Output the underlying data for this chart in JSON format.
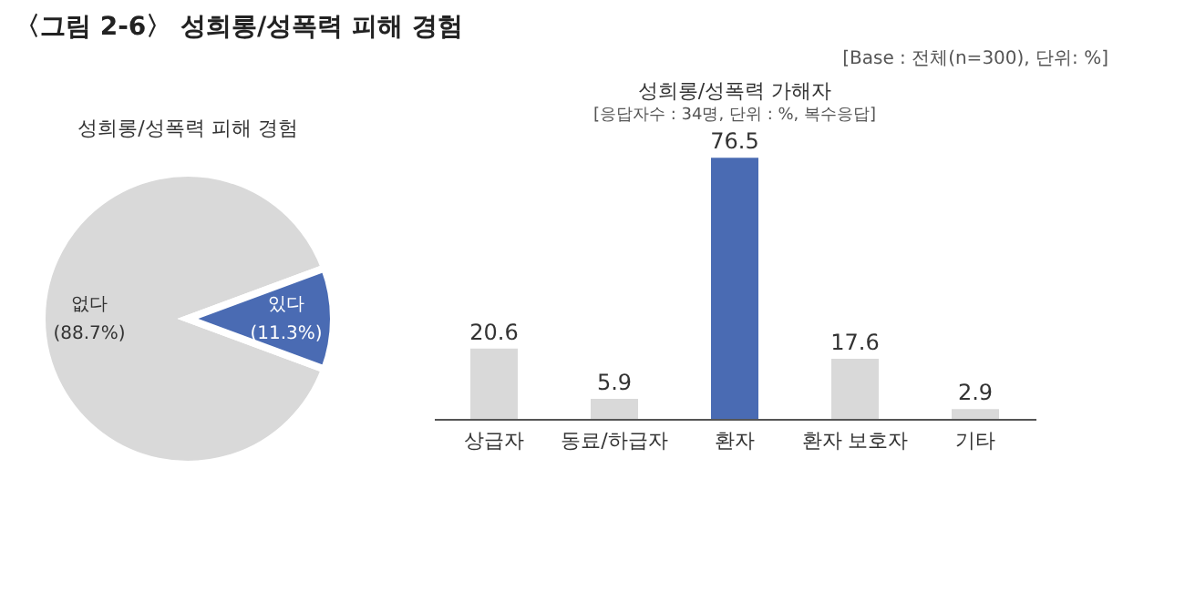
{
  "chart_data": [
    {
      "type": "pie",
      "title": "〈그림 2-6〉 성희롱/성폭력 피해 경험",
      "subtitle": "성희롱/성폭력 피해 경험",
      "annotations": [
        "[Base : 전체(n=300), 단위: %]"
      ],
      "categories": [
        "없다",
        "있다"
      ],
      "values": [
        88.7,
        11.3
      ],
      "colors": [
        "#d9d9d9",
        "#4a6bb3"
      ],
      "value_labels": [
        "(88.7%)",
        "(11.3%)"
      ],
      "legend": false
    },
    {
      "type": "bar",
      "title": "성희롱/성폭력 가해자",
      "annotations": [
        "[응답자수 : 34명, 단위 : %, 복수응답]"
      ],
      "categories": [
        "상급자",
        "동료/하급자",
        "환자",
        "환자 보호자",
        "기타"
      ],
      "values": [
        20.6,
        5.9,
        76.5,
        17.6,
        2.9
      ],
      "colors": [
        "#d9d9d9",
        "#d9d9d9",
        "#4a6bb3",
        "#d9d9d9",
        "#d9d9d9"
      ],
      "data_labels": true,
      "tick_labels": "x",
      "legend": false
    }
  ]
}
